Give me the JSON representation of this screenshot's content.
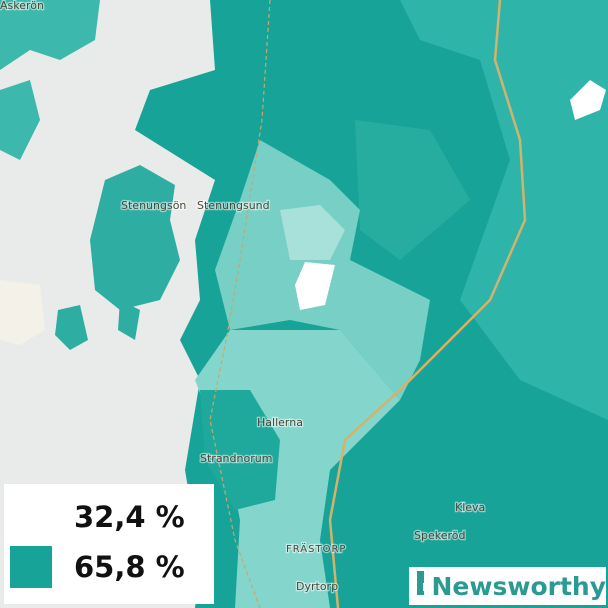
{
  "map": {
    "places": [
      "Askerön",
      "Stenungsön",
      "Stenungsund",
      "Hallerna",
      "Strandnorum",
      "Kleva",
      "Spekeröd",
      "FRÄSTORP",
      "Dyrtorp"
    ],
    "legend": [
      {
        "label": "32,4 %",
        "color": "#ffffff"
      },
      {
        "label": "65,8 %",
        "color": "#17a398"
      }
    ],
    "brand": "Newsworthy"
  }
}
